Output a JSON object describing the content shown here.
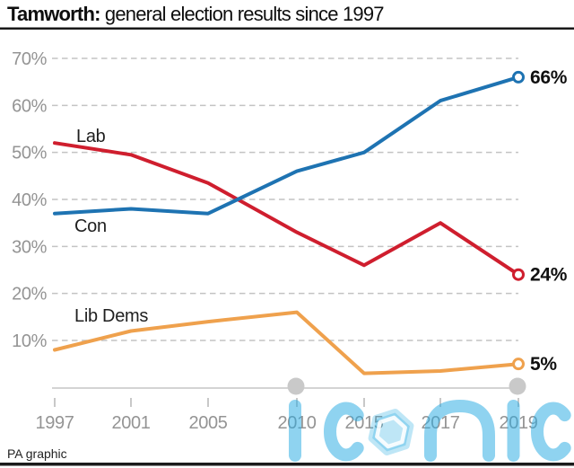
{
  "title": {
    "prefix": "Tamworth:",
    "rest": " general election results since 1997"
  },
  "footer": {
    "credit": "PA graphic"
  },
  "watermark": {
    "text": "iconic",
    "color": "#29abe2"
  },
  "chart_data": {
    "type": "line",
    "title": "Tamworth: general election results since 1997",
    "x": [
      1997,
      2001,
      2005,
      2010,
      2015,
      2017,
      2019
    ],
    "series": [
      {
        "name": "Lab",
        "color": "#cf1e2e",
        "values": [
          52,
          49.5,
          43.5,
          33,
          26,
          35,
          24
        ],
        "end_label": "24%"
      },
      {
        "name": "Con",
        "color": "#1e73b2",
        "values": [
          37,
          38,
          37,
          46,
          50,
          61,
          66
        ],
        "end_label": "66%"
      },
      {
        "name": "Lib Dems",
        "color": "#efa14d",
        "values": [
          8,
          12,
          14,
          16,
          3,
          3.5,
          5
        ],
        "end_label": "5%"
      }
    ],
    "yticks": [
      10,
      20,
      30,
      40,
      50,
      60,
      70
    ],
    "ytick_suffix": "%",
    "ylim": [
      0,
      73
    ],
    "grid": "dashed horizontal gridlines",
    "legend": "inline series labels",
    "axis_markers": [
      2010,
      2019
    ]
  }
}
